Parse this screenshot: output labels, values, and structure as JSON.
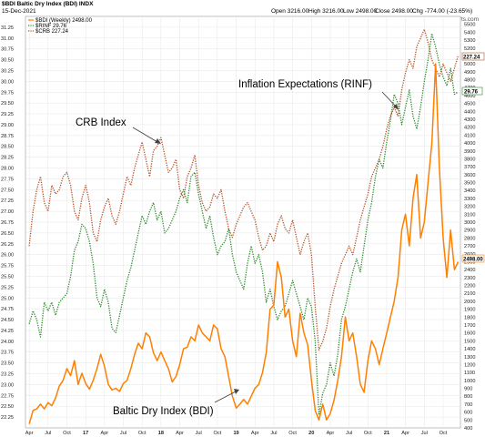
{
  "header": {
    "title": "$BDI Baltic Dry Index (BDI) INDX",
    "date": "15-Dec-2021",
    "quote_open": "Open 3216.00",
    "quote_high": "High 3216.00",
    "quote_low": "Low 2498.00",
    "quote_close": "Close 2498.00",
    "quote_chg": "Chg -774.00 (-23.65%)",
    "watermark": "© StockCharts.com",
    "legend_bdi": "$BDI (Weekly) 2498.00",
    "legend_rinf": "$RINF 29.76",
    "legend_crb": "$CRB 227.24"
  },
  "chart_data": {
    "type": "line",
    "title": "Baltic Dry Index (BDI)",
    "x_tick_labels": [
      "Apr",
      "Jul",
      "Oct",
      "17",
      "Apr",
      "Jul",
      "Oct",
      "18",
      "Apr",
      "Jul",
      "Oct",
      "19",
      "Apr",
      "Jul",
      "Oct",
      "20",
      "Apr",
      "Jul",
      "Oct",
      "21",
      "Apr",
      "Jul",
      "Oct"
    ],
    "y_left_axis": {
      "label": "RINF",
      "range": [
        22.0,
        31.5
      ],
      "ticks": [
        "31.25",
        "31.00",
        "30.75",
        "30.50",
        "30.25",
        "30.00",
        "29.75",
        "29.50",
        "29.25",
        "29.00",
        "28.75",
        "28.50",
        "28.25",
        "28.00",
        "27.75",
        "27.50",
        "27.25",
        "27.00",
        "26.75",
        "26.50",
        "26.25",
        "26.00",
        "25.75",
        "25.50",
        "25.25",
        "25.00",
        "24.75",
        "24.50",
        "24.25",
        "24.00",
        "23.75",
        "23.50",
        "23.25",
        "23.00",
        "22.75",
        "22.50",
        "22.25"
      ]
    },
    "y_right_axis": {
      "label": "BDI",
      "range": [
        400,
        5600
      ],
      "ticks": [
        "5500",
        "5400",
        "5300",
        "5200",
        "5100",
        "5000",
        "4900",
        "4800",
        "4700",
        "4600",
        "4500",
        "4400",
        "4300",
        "4200",
        "4100",
        "4000",
        "3900",
        "3800",
        "3700",
        "3600",
        "3500",
        "3400",
        "3300",
        "3200",
        "3100",
        "3000",
        "2900",
        "2800",
        "2700",
        "2600",
        "2500",
        "2400",
        "2300",
        "2200",
        "2100",
        "2000",
        "1900",
        "1800",
        "1700",
        "1600",
        "1500",
        "1400",
        "1300",
        "1200",
        "1100",
        "1000",
        "900",
        "800",
        "700",
        "600",
        "500",
        "400"
      ]
    },
    "series": [
      {
        "name": "$BDI (Weekly)",
        "color": "#ff7f00",
        "style": "solid",
        "axis": "right",
        "x": [
          2016.25,
          2016.3,
          2016.35,
          2016.4,
          2016.45,
          2016.5,
          2016.55,
          2016.6,
          2016.65,
          2016.7,
          2016.75,
          2016.8,
          2016.85,
          2016.9,
          2016.95,
          2017.0,
          2017.05,
          2017.1,
          2017.15,
          2017.2,
          2017.25,
          2017.3,
          2017.35,
          2017.4,
          2017.45,
          2017.5,
          2017.55,
          2017.6,
          2017.65,
          2017.7,
          2017.75,
          2017.8,
          2017.85,
          2017.9,
          2017.95,
          2018.0,
          2018.05,
          2018.1,
          2018.15,
          2018.2,
          2018.25,
          2018.3,
          2018.35,
          2018.4,
          2018.45,
          2018.5,
          2018.55,
          2018.6,
          2018.65,
          2018.7,
          2018.75,
          2018.8,
          2018.85,
          2018.9,
          2018.95,
          2019.0,
          2019.05,
          2019.1,
          2019.15,
          2019.2,
          2019.25,
          2019.3,
          2019.35,
          2019.4,
          2019.45,
          2019.5,
          2019.55,
          2019.6,
          2019.65,
          2019.7,
          2019.75,
          2019.8,
          2019.85,
          2019.9,
          2019.95,
          2020.0,
          2020.05,
          2020.1,
          2020.15,
          2020.2,
          2020.25,
          2020.3,
          2020.35,
          2020.4,
          2020.45,
          2020.5,
          2020.55,
          2020.6,
          2020.65,
          2020.7,
          2020.75,
          2020.8,
          2020.85,
          2020.9,
          2020.95,
          2021.0,
          2021.05,
          2021.1,
          2021.15,
          2021.2,
          2021.25,
          2021.3,
          2021.35,
          2021.4,
          2021.45,
          2021.5,
          2021.55,
          2021.6,
          2021.65,
          2021.7,
          2021.75,
          2021.8,
          2021.85,
          2021.9,
          2021.95
        ],
        "values": [
          450,
          620,
          640,
          700,
          640,
          720,
          680,
          780,
          930,
          1000,
          1150,
          1060,
          1250,
          950,
          1090,
          960,
          890,
          1000,
          1150,
          1330,
          1180,
          950,
          880,
          900,
          860,
          960,
          1000,
          1150,
          1330,
          1470,
          1400,
          1600,
          1550,
          1350,
          1250,
          1360,
          1250,
          1150,
          980,
          1050,
          1200,
          1400,
          1420,
          1550,
          1500,
          1700,
          1600,
          1550,
          1500,
          1700,
          1650,
          1400,
          1300,
          1050,
          800,
          650,
          700,
          760,
          700,
          800,
          900,
          950,
          1100,
          1350,
          1900,
          1950,
          2500,
          2300,
          1800,
          1900,
          1500,
          1300,
          1850,
          1600,
          1450,
          1000,
          620,
          500,
          700,
          500,
          580,
          750,
          1000,
          1300,
          1800,
          1500,
          1600,
          1300,
          950,
          850,
          1250,
          1500,
          1400,
          1200,
          1400,
          1600,
          1800,
          2000,
          2300,
          2900,
          3100,
          2700,
          3300,
          3600,
          2800,
          3000,
          3500,
          4000,
          5000,
          3700,
          2800,
          2300,
          2900,
          2400,
          2500
        ]
      },
      {
        "name": "$RINF",
        "color": "#2e8b2e",
        "style": "dotted",
        "axis": "left",
        "x": [
          2016.25,
          2016.3,
          2016.35,
          2016.4,
          2016.45,
          2016.5,
          2016.55,
          2016.6,
          2016.65,
          2016.7,
          2016.75,
          2016.8,
          2016.85,
          2016.9,
          2016.95,
          2017.0,
          2017.05,
          2017.1,
          2017.15,
          2017.2,
          2017.25,
          2017.3,
          2017.35,
          2017.4,
          2017.45,
          2017.5,
          2017.55,
          2017.6,
          2017.65,
          2017.7,
          2017.75,
          2017.8,
          2017.85,
          2017.9,
          2017.95,
          2018.0,
          2018.05,
          2018.1,
          2018.15,
          2018.2,
          2018.25,
          2018.3,
          2018.35,
          2018.4,
          2018.45,
          2018.5,
          2018.55,
          2018.6,
          2018.65,
          2018.7,
          2018.75,
          2018.8,
          2018.85,
          2018.9,
          2018.95,
          2019.0,
          2019.05,
          2019.1,
          2019.15,
          2019.2,
          2019.25,
          2019.3,
          2019.35,
          2019.4,
          2019.45,
          2019.5,
          2019.55,
          2019.6,
          2019.65,
          2019.7,
          2019.75,
          2019.8,
          2019.85,
          2019.9,
          2019.95,
          2020.0,
          2020.05,
          2020.1,
          2020.15,
          2020.2,
          2020.25,
          2020.3,
          2020.35,
          2020.4,
          2020.45,
          2020.5,
          2020.55,
          2020.6,
          2020.65,
          2020.7,
          2020.75,
          2020.8,
          2020.85,
          2020.9,
          2020.95,
          2021.0,
          2021.05,
          2021.1,
          2021.15,
          2021.2,
          2021.25,
          2021.3,
          2021.35,
          2021.4,
          2021.45,
          2021.5,
          2021.55,
          2021.6,
          2021.65,
          2021.7,
          2021.75,
          2021.8,
          2021.85,
          2021.9,
          2021.95
        ],
        "values": [
          24.4,
          24.7,
          24.5,
          24.1,
          24.9,
          24.7,
          24.9,
          24.6,
          24.9,
          25.0,
          25.1,
          25.5,
          26.1,
          26.3,
          26.7,
          26.6,
          26.3,
          25.8,
          25.0,
          24.8,
          25.2,
          24.9,
          24.3,
          24.2,
          24.6,
          25.0,
          25.4,
          25.7,
          26.1,
          26.5,
          26.9,
          26.7,
          27.0,
          27.2,
          26.8,
          27.0,
          26.5,
          26.6,
          26.8,
          27.0,
          27.3,
          27.5,
          27.2,
          27.8,
          27.9,
          27.4,
          27.0,
          26.6,
          26.9,
          26.4,
          26.0,
          26.2,
          26.3,
          26.6,
          26.0,
          25.6,
          25.4,
          25.2,
          25.8,
          26.2,
          25.8,
          26.0,
          25.6,
          24.9,
          25.2,
          24.8,
          24.5,
          24.7,
          24.8,
          25.1,
          25.4,
          25.1,
          24.8,
          24.5,
          25.0,
          24.8,
          24.0,
          22.3,
          22.8,
          23.0,
          23.5,
          23.2,
          23.7,
          24.5,
          24.8,
          25.2,
          25.6,
          25.9,
          25.6,
          26.2,
          26.8,
          27.2,
          27.8,
          28.2,
          28.0,
          28.6,
          29.1,
          29.7,
          29.5,
          29.0,
          29.4,
          29.8,
          29.2,
          28.9,
          29.4,
          30.0,
          30.5,
          31.1,
          30.8,
          30.4,
          30.1,
          29.9,
          30.3,
          29.7,
          29.76
        ]
      },
      {
        "name": "$CRB",
        "color": "#b5532a",
        "style": "dotted",
        "axis": "left",
        "x": [
          2016.25,
          2016.3,
          2016.35,
          2016.4,
          2016.45,
          2016.5,
          2016.55,
          2016.6,
          2016.65,
          2016.7,
          2016.75,
          2016.8,
          2016.85,
          2016.9,
          2016.95,
          2017.0,
          2017.05,
          2017.1,
          2017.15,
          2017.2,
          2017.25,
          2017.3,
          2017.35,
          2017.4,
          2017.45,
          2017.5,
          2017.55,
          2017.6,
          2017.65,
          2017.7,
          2017.75,
          2017.8,
          2017.85,
          2017.9,
          2017.95,
          2018.0,
          2018.05,
          2018.1,
          2018.15,
          2018.2,
          2018.25,
          2018.3,
          2018.35,
          2018.4,
          2018.45,
          2018.5,
          2018.55,
          2018.6,
          2018.65,
          2018.7,
          2018.75,
          2018.8,
          2018.85,
          2018.9,
          2018.95,
          2019.0,
          2019.05,
          2019.1,
          2019.15,
          2019.2,
          2019.25,
          2019.3,
          2019.35,
          2019.4,
          2019.45,
          2019.5,
          2019.55,
          2019.6,
          2019.65,
          2019.7,
          2019.75,
          2019.8,
          2019.85,
          2019.9,
          2019.95,
          2020.0,
          2020.05,
          2020.1,
          2020.15,
          2020.2,
          2020.25,
          2020.3,
          2020.35,
          2020.4,
          2020.45,
          2020.5,
          2020.55,
          2020.6,
          2020.65,
          2020.7,
          2020.75,
          2020.8,
          2020.85,
          2020.9,
          2020.95,
          2021.0,
          2021.05,
          2021.1,
          2021.15,
          2021.2,
          2021.25,
          2021.3,
          2021.35,
          2021.4,
          2021.45,
          2021.5,
          2021.55,
          2021.6,
          2021.65,
          2021.7,
          2021.75,
          2021.8,
          2021.85,
          2021.9,
          2021.95
        ],
        "values": [
          26.2,
          27.0,
          27.5,
          27.8,
          27.2,
          27.0,
          27.6,
          27.4,
          27.5,
          27.8,
          27.9,
          27.6,
          27.0,
          26.8,
          27.3,
          27.6,
          27.2,
          26.5,
          26.3,
          26.8,
          27.1,
          27.3,
          26.9,
          26.7,
          27.0,
          27.4,
          27.8,
          27.6,
          28.0,
          28.3,
          28.6,
          28.2,
          27.8,
          28.4,
          28.5,
          28.7,
          28.3,
          27.9,
          28.0,
          28.2,
          27.5,
          27.3,
          27.8,
          28.0,
          28.3,
          27.6,
          27.2,
          27.0,
          27.1,
          27.4,
          27.3,
          27.5,
          27.0,
          26.6,
          26.4,
          26.7,
          26.9,
          27.1,
          27.2,
          27.0,
          26.8,
          26.4,
          26.1,
          26.2,
          26.5,
          26.3,
          26.7,
          26.9,
          26.6,
          26.5,
          26.8,
          26.4,
          26.0,
          26.3,
          26.5,
          26.0,
          24.8,
          23.8,
          24.0,
          24.3,
          24.8,
          25.2,
          25.5,
          25.8,
          26.0,
          26.2,
          26.0,
          26.4,
          26.8,
          27.1,
          27.4,
          27.8,
          28.0,
          28.2,
          28.5,
          28.9,
          29.2,
          29.4,
          29.2,
          29.8,
          30.2,
          30.5,
          30.3,
          30.8,
          31.0,
          31.2,
          30.9,
          30.5,
          30.3,
          30.1,
          30.4,
          30.2,
          30.0,
          30.3,
          30.6
        ]
      }
    ],
    "annotations": [
      {
        "text": "Inflation Expectations (RINF)"
      },
      {
        "text": "CRB Index"
      },
      {
        "text": "Baltic Dry Index (BDI)"
      }
    ],
    "last_value_labels": {
      "rinf": "29.76",
      "crb": "227.24",
      "bdi": "2498.00"
    },
    "grid": true
  }
}
